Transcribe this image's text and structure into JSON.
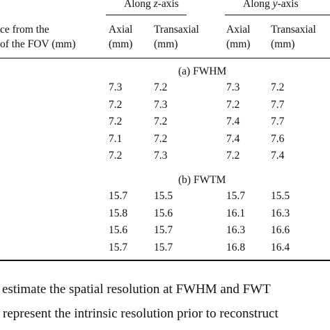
{
  "table": {
    "group_headers": {
      "z_prefix": "Along ",
      "z_axis": "z",
      "z_suffix": "-axis",
      "y_prefix": "Along ",
      "y_axis": "y",
      "y_suffix": "-axis"
    },
    "row_header": {
      "line1": "ce from the",
      "line2": "of the FOV (mm)"
    },
    "col_headers": {
      "z_axial": "Axial",
      "z_axial_unit": "(mm)",
      "z_trans": "Transaxial",
      "z_trans_unit": "(mm)",
      "y_axial": "Axial",
      "y_axial_unit": "(mm)",
      "y_trans": "Transaxial",
      "y_trans_unit": "(mm)"
    },
    "section_a": {
      "label": "(a) FWHM",
      "rows": [
        [
          "7.3",
          "7.2",
          "7.3",
          "7.2"
        ],
        [
          "7.2",
          "7.3",
          "7.2",
          "7.7"
        ],
        [
          "7.2",
          "7.2",
          "7.4",
          "7.7"
        ],
        [
          "7.1",
          "7.2",
          "7.4",
          "7.6"
        ],
        [
          "7.2",
          "7.3",
          "7.2",
          "7.4"
        ]
      ]
    },
    "section_b": {
      "label": "(b) FWTM",
      "rows": [
        [
          "15.7",
          "15.5",
          "15.7",
          "15.5"
        ],
        [
          "15.8",
          "15.6",
          "16.1",
          "16.3"
        ],
        [
          "15.6",
          "15.7",
          "16.3",
          "16.6"
        ],
        [
          "15.7",
          "15.7",
          "16.8",
          "16.4"
        ]
      ]
    }
  },
  "caption": {
    "line1": "estimate the spatial resolution at FWHM and FWT",
    "line2": "l represent the intrinsic resolution prior to reconstruct"
  }
}
